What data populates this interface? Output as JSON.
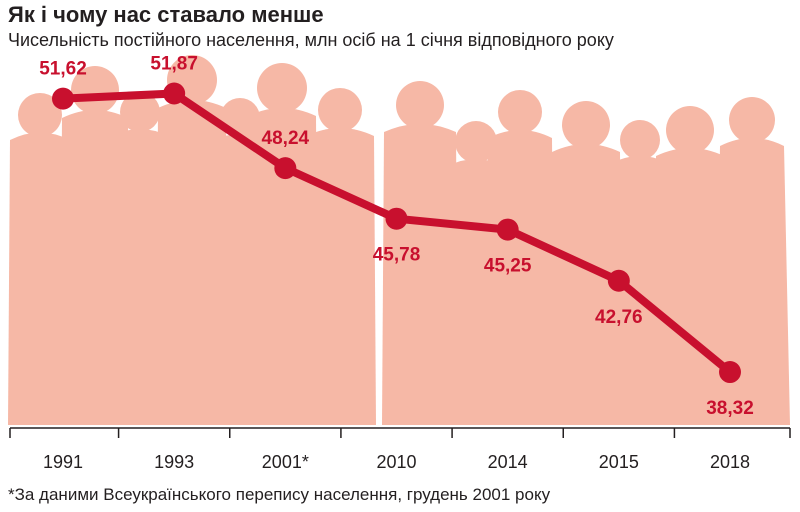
{
  "title": "Як і чому нас ставало менше",
  "subtitle": "Чисельність постійного населення, млн осіб на 1 січня відповідного року",
  "footnote": "*За даними Всеукраїнського перепису населення, грудень 2001 року",
  "colors": {
    "line": "#c8102e",
    "label": "#c8102e",
    "silhouette": "#f6b8a6",
    "axis": "#231f20"
  },
  "chart_data": {
    "type": "line",
    "categories": [
      "1991",
      "1993",
      "2001*",
      "2010",
      "2014",
      "2015",
      "2018"
    ],
    "values": [
      51.62,
      51.87,
      48.24,
      45.78,
      45.25,
      42.76,
      38.32
    ],
    "value_labels": [
      "51,62",
      "51,87",
      "48,24",
      "45,78",
      "45,25",
      "42,76",
      "38,32"
    ],
    "ylim": [
      35.5,
      53.5
    ],
    "grid": false,
    "legend": "none"
  }
}
